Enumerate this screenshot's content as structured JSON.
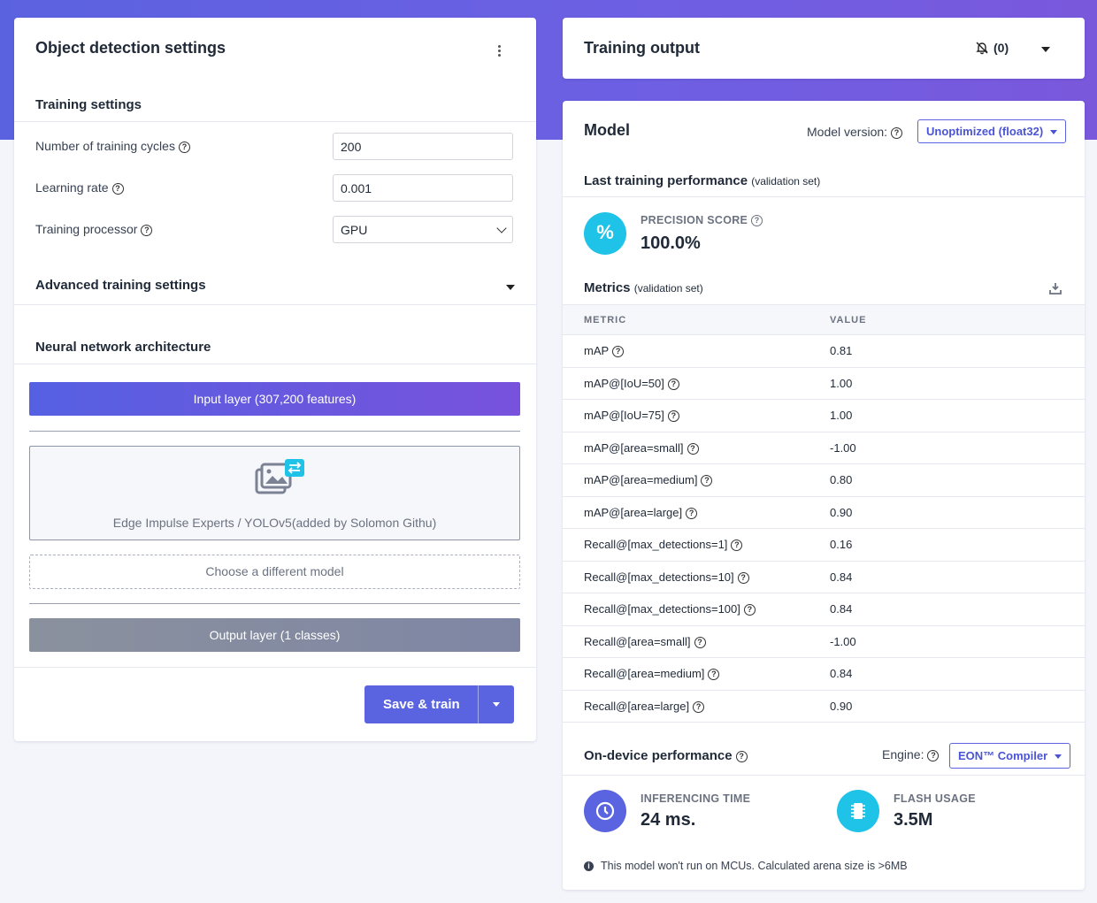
{
  "left": {
    "title": "Object detection settings",
    "training_settings": "Training settings",
    "rows": [
      {
        "label": "Number of training cycles",
        "value": "200"
      },
      {
        "label": "Learning rate",
        "value": "0.001"
      },
      {
        "label": "Training processor",
        "value": "GPU"
      }
    ],
    "advanced": "Advanced training settings",
    "nn_title": "Neural network architecture",
    "input_layer": "Input layer (307,200 features)",
    "model_name": "Edge Impulse Experts / YOLOv5(added by Solomon Githu)",
    "choose_model": "Choose a different model",
    "output_layer": "Output layer (1 classes)",
    "save_train": "Save & train"
  },
  "output": {
    "title": "Training output",
    "notif_count": "(0)"
  },
  "model": {
    "title": "Model",
    "version_label": "Model version:",
    "version_value": "Unoptimized (float32)",
    "perf_title": "Last training performance",
    "perf_sub": "(validation set)",
    "precision_label": "PRECISION SCORE",
    "precision_value": "100.0%",
    "metrics_title": "Metrics",
    "metrics_sub": "(validation set)",
    "col_metric": "METRIC",
    "col_value": "VALUE",
    "metrics": [
      {
        "name": "mAP",
        "value": "0.81"
      },
      {
        "name": "mAP@[IoU=50]",
        "value": "1.00"
      },
      {
        "name": "mAP@[IoU=75]",
        "value": "1.00"
      },
      {
        "name": "mAP@[area=small]",
        "value": "-1.00"
      },
      {
        "name": "mAP@[area=medium]",
        "value": "0.80"
      },
      {
        "name": "mAP@[area=large]",
        "value": "0.90"
      },
      {
        "name": "Recall@[max_detections=1]",
        "value": "0.16"
      },
      {
        "name": "Recall@[max_detections=10]",
        "value": "0.84"
      },
      {
        "name": "Recall@[max_detections=100]",
        "value": "0.84"
      },
      {
        "name": "Recall@[area=small]",
        "value": "-1.00"
      },
      {
        "name": "Recall@[area=medium]",
        "value": "0.84"
      },
      {
        "name": "Recall@[area=large]",
        "value": "0.90"
      }
    ],
    "ondevice_title": "On-device performance",
    "engine_label": "Engine:",
    "engine_value": "EON™ Compiler",
    "inf_label": "INFERENCING TIME",
    "inf_value": "24 ms.",
    "flash_label": "FLASH USAGE",
    "flash_value": "3.5M",
    "note": "This model won't run on MCUs. Calculated arena size is >6MB"
  },
  "colors": {
    "accent": "#5a64e0",
    "cyan": "#1fc3e8",
    "hero": "#6a5fe3"
  }
}
